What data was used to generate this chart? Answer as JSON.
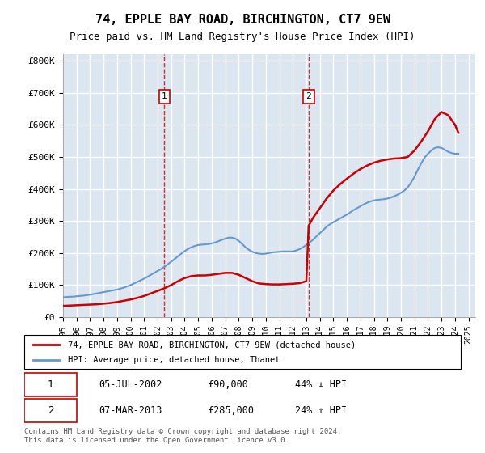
{
  "title": "74, EPPLE BAY ROAD, BIRCHINGTON, CT7 9EW",
  "subtitle": "Price paid vs. HM Land Registry's House Price Index (HPI)",
  "ylabel_ticks": [
    "£0",
    "£100K",
    "£200K",
    "£300K",
    "£400K",
    "£500K",
    "£600K",
    "£700K",
    "£800K"
  ],
  "ytick_values": [
    0,
    100000,
    200000,
    300000,
    400000,
    500000,
    600000,
    700000,
    800000
  ],
  "ylim": [
    0,
    820000
  ],
  "xlim_start": 1995.0,
  "xlim_end": 2025.5,
  "sale1_x": 2002.5,
  "sale1_y": 90000,
  "sale1_label": "05-JUL-2002",
  "sale1_price": "£90,000",
  "sale1_hpi": "44% ↓ HPI",
  "sale2_x": 2013.17,
  "sale2_y": 285000,
  "sale2_label": "07-MAR-2013",
  "sale2_price": "£285,000",
  "sale2_hpi": "24% ↑ HPI",
  "hpi_color": "#6699cc",
  "property_color": "#cc0000",
  "marker_box_color": "#cc0000",
  "background_color": "#dce6f1",
  "grid_color": "#ffffff",
  "legend_label_property": "74, EPPLE BAY ROAD, BIRCHINGTON, CT7 9EW (detached house)",
  "legend_label_hpi": "HPI: Average price, detached house, Thanet",
  "footer": "Contains HM Land Registry data © Crown copyright and database right 2024.\nThis data is licensed under the Open Government Licence v3.0.",
  "hpi_data_x": [
    1995,
    1995.25,
    1995.5,
    1995.75,
    1996,
    1996.25,
    1996.5,
    1996.75,
    1997,
    1997.25,
    1997.5,
    1997.75,
    1998,
    1998.25,
    1998.5,
    1998.75,
    1999,
    1999.25,
    1999.5,
    1999.75,
    2000,
    2000.25,
    2000.5,
    2000.75,
    2001,
    2001.25,
    2001.5,
    2001.75,
    2002,
    2002.25,
    2002.5,
    2002.75,
    2003,
    2003.25,
    2003.5,
    2003.75,
    2004,
    2004.25,
    2004.5,
    2004.75,
    2005,
    2005.25,
    2005.5,
    2005.75,
    2006,
    2006.25,
    2006.5,
    2006.75,
    2007,
    2007.25,
    2007.5,
    2007.75,
    2008,
    2008.25,
    2008.5,
    2008.75,
    2009,
    2009.25,
    2009.5,
    2009.75,
    2010,
    2010.25,
    2010.5,
    2010.75,
    2011,
    2011.25,
    2011.5,
    2011.75,
    2012,
    2012.25,
    2012.5,
    2012.75,
    2013,
    2013.25,
    2013.5,
    2013.75,
    2014,
    2014.25,
    2014.5,
    2014.75,
    2015,
    2015.25,
    2015.5,
    2015.75,
    2016,
    2016.25,
    2016.5,
    2016.75,
    2017,
    2017.25,
    2017.5,
    2017.75,
    2018,
    2018.25,
    2018.5,
    2018.75,
    2019,
    2019.25,
    2019.5,
    2019.75,
    2020,
    2020.25,
    2020.5,
    2020.75,
    2021,
    2021.25,
    2021.5,
    2021.75,
    2022,
    2022.25,
    2022.5,
    2022.75,
    2023,
    2023.25,
    2023.5,
    2023.75,
    2024,
    2024.25
  ],
  "hpi_data_y": [
    62000,
    63000,
    63500,
    64000,
    65000,
    66000,
    67000,
    68500,
    70000,
    72000,
    74000,
    76000,
    78000,
    80000,
    82000,
    84000,
    86000,
    89000,
    92000,
    96000,
    100000,
    105000,
    110000,
    115000,
    120000,
    126000,
    132000,
    138000,
    144000,
    150000,
    157000,
    165000,
    173000,
    181000,
    190000,
    198000,
    206000,
    213000,
    218000,
    222000,
    225000,
    226000,
    227000,
    228000,
    230000,
    233000,
    237000,
    241000,
    245000,
    248000,
    248000,
    245000,
    238000,
    228000,
    218000,
    210000,
    204000,
    200000,
    198000,
    197000,
    198000,
    200000,
    202000,
    203000,
    204000,
    205000,
    205000,
    205000,
    205000,
    208000,
    212000,
    218000,
    225000,
    233000,
    242000,
    252000,
    262000,
    272000,
    282000,
    290000,
    296000,
    302000,
    308000,
    314000,
    320000,
    327000,
    334000,
    340000,
    346000,
    352000,
    357000,
    361000,
    364000,
    366000,
    367000,
    368000,
    370000,
    373000,
    377000,
    382000,
    388000,
    395000,
    405000,
    420000,
    438000,
    460000,
    480000,
    498000,
    510000,
    520000,
    528000,
    530000,
    528000,
    522000,
    516000,
    512000,
    510000,
    510000
  ],
  "property_data_x": [
    1995,
    1995.5,
    1996,
    1996.5,
    1997,
    1997.5,
    1998,
    1998.5,
    1999,
    1999.5,
    2000,
    2000.5,
    2001,
    2001.5,
    2002,
    2002.5,
    2003,
    2003.5,
    2004,
    2004.5,
    2005,
    2005.5,
    2006,
    2006.5,
    2007,
    2007.5,
    2008,
    2008.5,
    2009,
    2009.5,
    2010,
    2010.5,
    2011,
    2011.5,
    2012,
    2012.5,
    2013,
    2013.17,
    2013.5,
    2014,
    2014.5,
    2015,
    2015.5,
    2016,
    2016.5,
    2017,
    2017.5,
    2018,
    2018.5,
    2019,
    2019.5,
    2020,
    2020.5,
    2021,
    2021.5,
    2022,
    2022.5,
    2023,
    2023.5,
    2024,
    2024.25
  ],
  "property_data_y": [
    35000,
    36000,
    37000,
    38000,
    39000,
    40000,
    42000,
    44000,
    47000,
    51000,
    55000,
    60000,
    66000,
    74000,
    82000,
    90000,
    100000,
    112000,
    122000,
    128000,
    130000,
    130000,
    132000,
    135000,
    138000,
    138000,
    132000,
    122000,
    112000,
    105000,
    103000,
    102000,
    102000,
    103000,
    104000,
    106000,
    112000,
    285000,
    310000,
    340000,
    370000,
    395000,
    415000,
    432000,
    448000,
    462000,
    473000,
    482000,
    488000,
    492000,
    495000,
    496000,
    500000,
    520000,
    548000,
    580000,
    618000,
    640000,
    630000,
    600000,
    575000
  ]
}
